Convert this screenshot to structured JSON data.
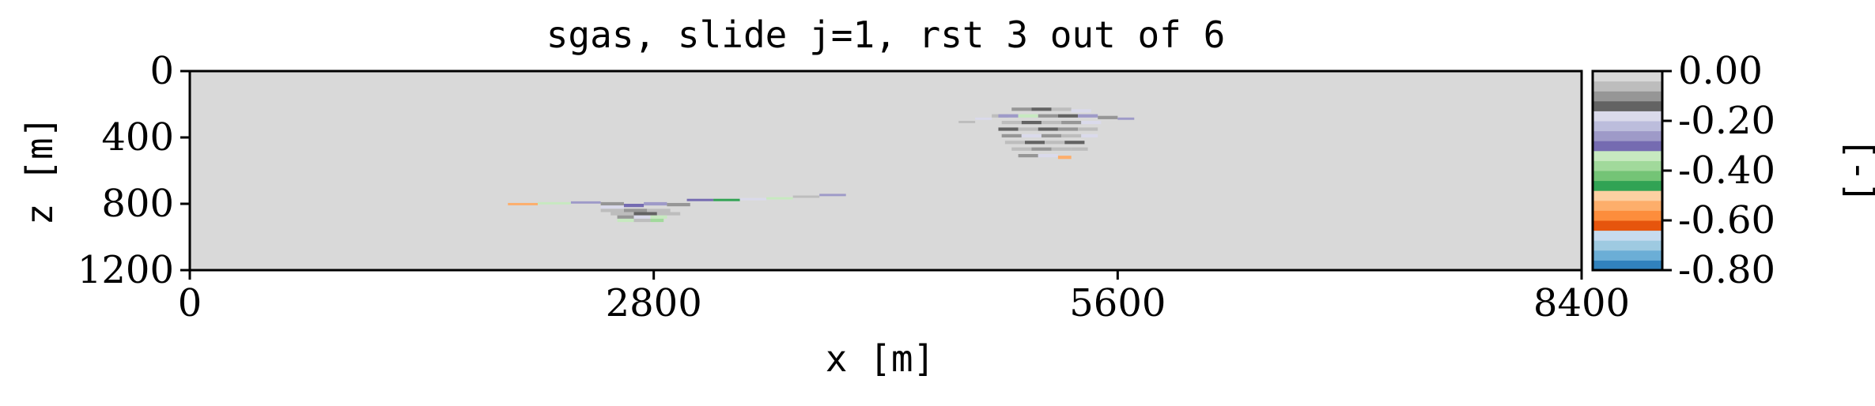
{
  "chart_data": {
    "type": "heatmap",
    "title": "sgas, slide j=1, rst 3 out of 6",
    "xlabel": "x [m]",
    "ylabel": "z [m]",
    "xlim": [
      0,
      8400
    ],
    "ylim": [
      1200,
      0
    ],
    "xticks": [
      "0",
      "2800",
      "5600",
      "8400"
    ],
    "yticks": [
      "0",
      "400",
      "800",
      "1200"
    ],
    "background_value": 0.0,
    "colorbar": {
      "label": "[-]",
      "range": [
        -0.8,
        0.0
      ],
      "ticks": [
        "0.00",
        "-0.20",
        "-0.40",
        "-0.60",
        "-0.80"
      ],
      "colors": [
        "#3182bd",
        "#6baed6",
        "#9ecae1",
        "#c6dbef",
        "#e6550d",
        "#fd8d3c",
        "#fdae6b",
        "#fdd0a2",
        "#31a354",
        "#74c476",
        "#a1d99b",
        "#c7e9c0",
        "#756bb1",
        "#9e9ac8",
        "#bcbddc",
        "#dadaeb",
        "#636363",
        "#969696",
        "#bdbdbd",
        "#d9d9d9"
      ]
    },
    "plumes": [
      {
        "name": "",
        "cells": [
          [
            1920,
            795,
            180,
            14,
            -0.55
          ],
          [
            2100,
            790,
            200,
            14,
            -0.35
          ],
          [
            2300,
            785,
            180,
            14,
            -0.25
          ],
          [
            2480,
            790,
            140,
            20,
            -0.1
          ],
          [
            2480,
            810,
            140,
            20,
            -0.2
          ],
          [
            2620,
            800,
            120,
            20,
            -0.3
          ],
          [
            2740,
            790,
            140,
            20,
            -0.25
          ],
          [
            2880,
            795,
            140,
            20,
            -0.1
          ],
          [
            2480,
            830,
            140,
            20,
            -0.05
          ],
          [
            2620,
            830,
            140,
            20,
            -0.1
          ],
          [
            2760,
            830,
            140,
            20,
            -0.05
          ],
          [
            2540,
            850,
            140,
            20,
            -0.05
          ],
          [
            2680,
            850,
            140,
            20,
            -0.15
          ],
          [
            2820,
            850,
            140,
            20,
            -0.05
          ],
          [
            2580,
            870,
            100,
            20,
            -0.1
          ],
          [
            2680,
            870,
            100,
            20,
            -0.2
          ],
          [
            2780,
            870,
            100,
            20,
            -0.35
          ],
          [
            2580,
            890,
            100,
            20,
            -0.35
          ],
          [
            2680,
            890,
            100,
            20,
            -0.05
          ],
          [
            2780,
            890,
            80,
            20,
            -0.4
          ],
          [
            3000,
            770,
            160,
            14,
            -0.3
          ],
          [
            3160,
            770,
            160,
            14,
            -0.45
          ],
          [
            3320,
            765,
            160,
            14,
            -0.2
          ],
          [
            3480,
            760,
            160,
            14,
            -0.35
          ],
          [
            3640,
            750,
            160,
            14,
            -0.05
          ],
          [
            3800,
            740,
            160,
            14,
            -0.25
          ]
        ]
      },
      {
        "name": "",
        "cells": [
          [
            4640,
            300,
            100,
            14,
            -0.05
          ],
          [
            4740,
            280,
            100,
            14,
            -0.2
          ],
          [
            4840,
            260,
            100,
            20,
            -0.05
          ],
          [
            4960,
            220,
            120,
            20,
            -0.1
          ],
          [
            5080,
            220,
            120,
            20,
            -0.15
          ],
          [
            5200,
            220,
            120,
            20,
            -0.05
          ],
          [
            5320,
            230,
            120,
            20,
            -0.2
          ],
          [
            4880,
            260,
            120,
            20,
            -0.25
          ],
          [
            5000,
            260,
            120,
            20,
            -0.35
          ],
          [
            5120,
            260,
            120,
            20,
            -0.1
          ],
          [
            5240,
            260,
            120,
            20,
            -0.15
          ],
          [
            5360,
            260,
            120,
            20,
            -0.25
          ],
          [
            5480,
            270,
            120,
            20,
            -0.1
          ],
          [
            5600,
            280,
            100,
            14,
            -0.25
          ],
          [
            4900,
            300,
            120,
            20,
            -0.05
          ],
          [
            5020,
            300,
            120,
            20,
            -0.15
          ],
          [
            5140,
            300,
            120,
            20,
            -0.05
          ],
          [
            5260,
            300,
            120,
            20,
            -0.1
          ],
          [
            5380,
            300,
            120,
            20,
            -0.2
          ],
          [
            4880,
            340,
            120,
            20,
            -0.15
          ],
          [
            5000,
            340,
            120,
            20,
            -0.05
          ],
          [
            5120,
            340,
            120,
            20,
            -0.15
          ],
          [
            5240,
            340,
            120,
            20,
            -0.1
          ],
          [
            5360,
            340,
            120,
            20,
            -0.05
          ],
          [
            4900,
            380,
            120,
            20,
            -0.1
          ],
          [
            5020,
            380,
            120,
            20,
            -0.2
          ],
          [
            5140,
            380,
            120,
            20,
            -0.1
          ],
          [
            5260,
            380,
            120,
            20,
            -0.05
          ],
          [
            5380,
            380,
            100,
            20,
            -0.2
          ],
          [
            4920,
            420,
            120,
            20,
            -0.05
          ],
          [
            5040,
            420,
            120,
            20,
            -0.15
          ],
          [
            5160,
            420,
            120,
            20,
            -0.05
          ],
          [
            5280,
            420,
            120,
            20,
            -0.15
          ],
          [
            4960,
            460,
            120,
            20,
            -0.05
          ],
          [
            5080,
            460,
            120,
            20,
            -0.1
          ],
          [
            5200,
            460,
            120,
            20,
            -0.05
          ],
          [
            5320,
            460,
            100,
            20,
            -0.05
          ],
          [
            5000,
            500,
            120,
            20,
            -0.1
          ],
          [
            5120,
            500,
            120,
            20,
            -0.2
          ],
          [
            5240,
            510,
            80,
            20,
            -0.55
          ]
        ]
      }
    ]
  }
}
